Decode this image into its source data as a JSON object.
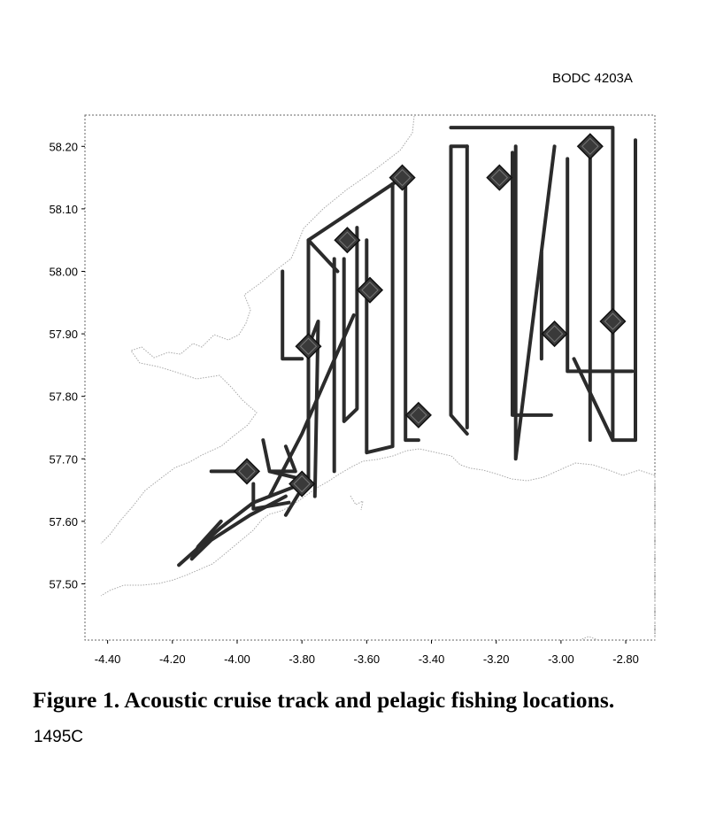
{
  "header": {
    "code": "BODC 4203A"
  },
  "caption": {
    "title": "Figure 1. Acoustic cruise track and pelagic fishing locations.",
    "reference": "1495C"
  },
  "chart_data": {
    "type": "map",
    "x_ticks": [
      "-4.40",
      "-4.20",
      "-4.00",
      "-3.80",
      "-3.60",
      "-3.40",
      "-3.20",
      "-3.00",
      "-2.80"
    ],
    "y_ticks": [
      "58.20",
      "58.10",
      "58.00",
      "57.90",
      "57.80",
      "57.70",
      "57.60",
      "57.50"
    ],
    "xlim": [
      -4.47,
      -2.71
    ],
    "ylim": [
      57.41,
      58.25
    ],
    "x_tick_values": [
      -4.4,
      -4.2,
      -4.0,
      -3.8,
      -3.6,
      -3.4,
      -3.2,
      -3.0,
      -2.8
    ],
    "y_tick_values": [
      58.2,
      58.1,
      58.0,
      57.9,
      57.8,
      57.7,
      57.6,
      57.5
    ],
    "fishing_stations": [
      {
        "lon": -3.49,
        "lat": 58.15
      },
      {
        "lon": -3.19,
        "lat": 58.15
      },
      {
        "lon": -2.91,
        "lat": 58.2
      },
      {
        "lon": -3.66,
        "lat": 58.05
      },
      {
        "lon": -3.59,
        "lat": 57.97
      },
      {
        "lon": -3.78,
        "lat": 57.88
      },
      {
        "lon": -3.02,
        "lat": 57.9
      },
      {
        "lon": -2.84,
        "lat": 57.92
      },
      {
        "lon": -3.44,
        "lat": 57.77
      },
      {
        "lon": -3.97,
        "lat": 57.68
      },
      {
        "lon": -3.8,
        "lat": 57.66
      }
    ],
    "cruise_track": [
      [
        [
          -3.34,
          58.23
        ],
        [
          -2.84,
          58.23
        ],
        [
          -2.84,
          57.73
        ],
        [
          -2.96,
          57.86
        ]
      ],
      [
        [
          -3.69,
          58.0
        ],
        [
          -3.78,
          58.05
        ],
        [
          -3.49,
          58.15
        ]
      ],
      [
        [
          -3.29,
          58.2
        ],
        [
          -3.29,
          57.75
        ]
      ],
      [
        [
          -2.77,
          58.21
        ],
        [
          -2.77,
          57.73
        ],
        [
          -2.84,
          57.73
        ]
      ],
      [
        [
          -3.29,
          58.2
        ],
        [
          -3.34,
          58.2
        ],
        [
          -3.34,
          57.77
        ],
        [
          -3.29,
          57.74
        ]
      ],
      [
        [
          -3.14,
          58.2
        ],
        [
          -3.14,
          57.7
        ],
        [
          -3.02,
          58.2
        ]
      ],
      [
        [
          -3.15,
          58.19
        ],
        [
          -3.15,
          57.77
        ],
        [
          -3.03,
          57.77
        ]
      ],
      [
        [
          -2.98,
          58.18
        ],
        [
          -2.98,
          57.84
        ],
        [
          -2.78,
          57.84
        ]
      ],
      [
        [
          -2.91,
          58.2
        ],
        [
          -2.91,
          57.73
        ]
      ],
      [
        [
          -3.06,
          58.03
        ],
        [
          -3.06,
          57.86
        ]
      ],
      [
        [
          -3.48,
          58.15
        ],
        [
          -3.48,
          57.73
        ],
        [
          -3.44,
          57.73
        ]
      ],
      [
        [
          -3.52,
          58.14
        ],
        [
          -3.52,
          57.72
        ],
        [
          -3.6,
          57.71
        ],
        [
          -3.6,
          58.05
        ]
      ],
      [
        [
          -3.63,
          58.07
        ],
        [
          -3.63,
          57.78
        ],
        [
          -3.67,
          57.76
        ],
        [
          -3.67,
          58.02
        ]
      ],
      [
        [
          -3.7,
          58.02
        ],
        [
          -3.7,
          57.68
        ]
      ],
      [
        [
          -3.76,
          57.64
        ],
        [
          -3.75,
          57.92
        ],
        [
          -3.78,
          57.88
        ]
      ],
      [
        [
          -3.78,
          58.05
        ],
        [
          -3.78,
          57.67
        ],
        [
          -3.85,
          57.61
        ]
      ],
      [
        [
          -3.86,
          58.0
        ],
        [
          -3.86,
          57.86
        ],
        [
          -3.8,
          57.86
        ]
      ],
      [
        [
          -3.64,
          57.93
        ],
        [
          -3.8,
          57.74
        ],
        [
          -3.9,
          57.64
        ]
      ],
      [
        [
          -3.9,
          57.68
        ],
        [
          -3.82,
          57.68
        ],
        [
          -3.85,
          57.72
        ]
      ],
      [
        [
          -3.96,
          57.68
        ],
        [
          -4.08,
          57.68
        ]
      ],
      [
        [
          -3.8,
          57.66
        ],
        [
          -3.95,
          57.63
        ],
        [
          -4.05,
          57.59
        ],
        [
          -4.18,
          57.53
        ]
      ],
      [
        [
          -3.85,
          57.64
        ],
        [
          -3.96,
          57.61
        ],
        [
          -4.08,
          57.57
        ],
        [
          -4.14,
          57.54
        ]
      ],
      [
        [
          -3.95,
          57.66
        ],
        [
          -3.95,
          57.62
        ],
        [
          -3.84,
          57.63
        ]
      ],
      [
        [
          -3.82,
          57.67
        ],
        [
          -3.9,
          57.68
        ],
        [
          -3.92,
          57.73
        ]
      ],
      [
        [
          -4.05,
          57.6
        ],
        [
          -4.12,
          57.56
        ],
        [
          -4.14,
          57.54
        ]
      ]
    ],
    "colors": {
      "track": "#2b2b2b",
      "coast": "#a8a8a8",
      "frame": "#666666"
    }
  }
}
